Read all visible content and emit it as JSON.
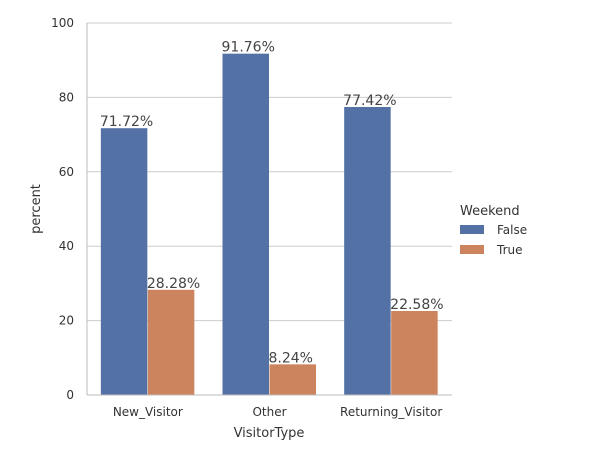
{
  "chart_data": {
    "type": "bar",
    "xlabel": "VisitorType",
    "ylabel": "percent",
    "ylim": [
      0,
      100
    ],
    "yticks": [
      0,
      20,
      40,
      60,
      80,
      100
    ],
    "grid": "horizontal",
    "categories": [
      "New_Visitor",
      "Other",
      "Returning_Visitor"
    ],
    "series": [
      {
        "name": "False",
        "color": "#5471a5",
        "values": [
          71.72,
          91.76,
          77.42
        ],
        "labels": [
          "71.72%",
          "91.76%",
          "77.42%"
        ]
      },
      {
        "name": "True",
        "color": "#cc845f",
        "values": [
          28.28,
          8.24,
          22.58
        ],
        "labels": [
          "28.28%",
          "8.24%",
          "22.58%"
        ]
      }
    ],
    "legend": {
      "title": "Weekend",
      "placement": "right"
    }
  }
}
